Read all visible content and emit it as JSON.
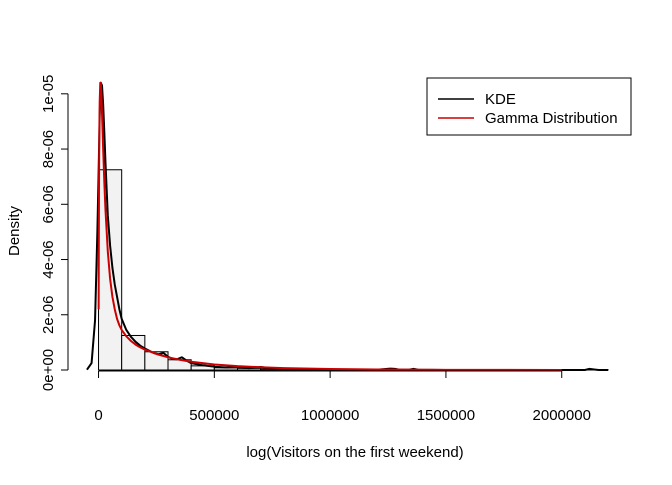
{
  "chart_data": {
    "type": "histogram",
    "title": "",
    "xlabel": "log(Visitors on the first weekend)",
    "ylabel": "Density",
    "xlim": [
      -80000,
      2230000
    ],
    "ylim": [
      0,
      1.05e-05
    ],
    "x_ticks": [
      {
        "value": 0,
        "label": "0"
      },
      {
        "value": 500000,
        "label": "500000"
      },
      {
        "value": 1000000,
        "label": "1000000"
      },
      {
        "value": 1500000,
        "label": "1500000"
      },
      {
        "value": 2000000,
        "label": "2000000"
      }
    ],
    "y_ticks": [
      {
        "value": 0,
        "label": "0e+00"
      },
      {
        "value": 2e-06,
        "label": "2e-06"
      },
      {
        "value": 4e-06,
        "label": "4e-06"
      },
      {
        "value": 6e-06,
        "label": "6e-06"
      },
      {
        "value": 8e-06,
        "label": "8e-06"
      },
      {
        "value": 1e-05,
        "label": "1e-05"
      }
    ],
    "bins": {
      "edges": [
        0,
        100000,
        200000,
        300000,
        400000,
        500000,
        600000,
        700000,
        800000,
        900000,
        1000000,
        1100000,
        1200000,
        1300000,
        1400000,
        1500000,
        1600000,
        1700000,
        1800000,
        1900000,
        2000000,
        2100000,
        2200000
      ],
      "density": [
        7.25e-06,
        1.25e-06,
        6.6e-07,
        3.7e-07,
        1.5e-07,
        8e-08,
        6e-08,
        4e-08,
        2e-08,
        1e-08,
        0,
        0,
        1e-08,
        1e-08,
        0,
        0,
        0,
        0,
        0,
        0,
        0,
        1e-08
      ],
      "fill": "#f2f2f2",
      "stroke": "#000000"
    },
    "series": [
      {
        "name": "KDE",
        "color": "#000000",
        "x": [
          -50000,
          -30000,
          -15000,
          -5000,
          0,
          5000,
          10000,
          15000,
          20000,
          25000,
          30000,
          40000,
          50000,
          60000,
          70000,
          80000,
          90000,
          100000,
          120000,
          140000,
          160000,
          180000,
          200000,
          220000,
          240000,
          260000,
          280000,
          300000,
          320000,
          340000,
          360000,
          380000,
          400000,
          450000,
          500000,
          550000,
          600000,
          650000,
          700000,
          750000,
          800000,
          900000,
          1000000,
          1100000,
          1200000,
          1260000,
          1280000,
          1300000,
          1340000,
          1360000,
          1380000,
          1500000,
          1700000,
          1900000,
          2100000,
          2120000,
          2140000,
          2160000,
          2200000
        ],
        "y": [
          1e-08,
          2.5e-07,
          1.8e-06,
          5e-06,
          7e-06,
          9.2e-06,
          1.04e-05,
          1.03e-05,
          9.6e-06,
          8.6e-06,
          7.5e-06,
          5.6e-06,
          4.5e-06,
          3.7e-06,
          3.1e-06,
          2.65e-06,
          2.2e-06,
          1.85e-06,
          1.45e-06,
          1.2e-06,
          1.02e-06,
          8.8e-07,
          7.8e-07,
          6.9e-07,
          6.1e-07,
          5.7e-07,
          6.2e-07,
          4.8e-07,
          4e-07,
          3.9e-07,
          4.6e-07,
          3.4e-07,
          2.5e-07,
          1.7e-07,
          1.2e-07,
          9e-08,
          1e-07,
          7e-08,
          1.1e-07,
          6e-08,
          5e-08,
          3e-08,
          2e-08,
          1e-08,
          1e-08,
          5e-08,
          4e-08,
          1e-08,
          1e-08,
          4e-08,
          1e-08,
          0,
          0,
          0,
          0,
          4e-08,
          2e-08,
          0,
          0
        ]
      },
      {
        "name": "Gamma Distribution",
        "color": "#cc0000",
        "x": [
          500,
          1000,
          2000,
          3500,
          5000,
          7500,
          10000,
          12500,
          15000,
          20000,
          25000,
          30000,
          40000,
          50000,
          60000,
          70000,
          80000,
          90000,
          100000,
          120000,
          140000,
          160000,
          180000,
          200000,
          250000,
          300000,
          350000,
          400000,
          500000,
          600000,
          700000,
          800000,
          1000000,
          1200000,
          1500000,
          2000000
        ],
        "y": [
          2.2e-06,
          4.2e-06,
          6.6e-06,
          8.6e-06,
          9.7e-06,
          1.04e-05,
          1.04e-05,
          9.9e-06,
          9.3e-06,
          8e-06,
          6.8e-06,
          5.8e-06,
          4.3e-06,
          3.3e-06,
          2.65e-06,
          2.2e-06,
          1.85e-06,
          1.62e-06,
          1.45e-06,
          1.22e-06,
          1.05e-06,
          9.2e-07,
          8.2e-07,
          7.4e-07,
          5.8e-07,
          4.6e-07,
          3.7e-07,
          3e-07,
          2e-07,
          1.4e-07,
          1e-07,
          7e-08,
          3.5e-08,
          1.8e-08,
          6e-09,
          1e-09
        ]
      }
    ],
    "legend": {
      "position": "top-right",
      "entries": [
        {
          "label": "KDE",
          "color": "#000000"
        },
        {
          "label": "Gamma Distribution",
          "color": "#cc0000"
        }
      ]
    },
    "grid": false
  }
}
